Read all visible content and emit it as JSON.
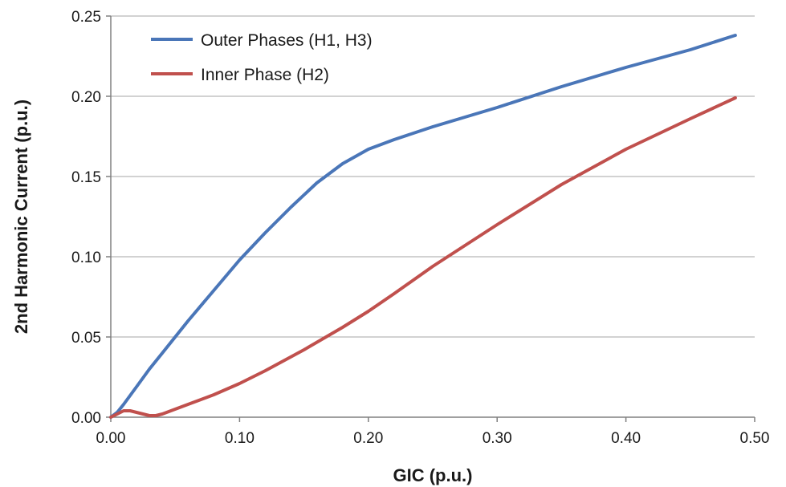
{
  "chart_data": {
    "type": "line",
    "title": "",
    "xlabel": "GIC (p.u.)",
    "ylabel": "2nd Harmonic Current (p.u.)",
    "xlim": [
      0,
      0.5
    ],
    "ylim": [
      0,
      0.25
    ],
    "xticks": [
      "0.00",
      "0.10",
      "0.20",
      "0.30",
      "0.40",
      "0.50"
    ],
    "yticks": [
      "0.00",
      "0.05",
      "0.10",
      "0.15",
      "0.20",
      "0.25"
    ],
    "grid": "horizontal",
    "legend_position": "top-left",
    "series": [
      {
        "name": "Outer Phases (H1, H3)",
        "color": "#4a76b8",
        "x": [
          0.0,
          0.005,
          0.01,
          0.02,
          0.03,
          0.04,
          0.05,
          0.06,
          0.08,
          0.1,
          0.12,
          0.14,
          0.16,
          0.18,
          0.2,
          0.22,
          0.25,
          0.3,
          0.35,
          0.4,
          0.45,
          0.485
        ],
        "y": [
          0.0,
          0.003,
          0.008,
          0.019,
          0.03,
          0.04,
          0.05,
          0.06,
          0.079,
          0.098,
          0.115,
          0.131,
          0.146,
          0.158,
          0.167,
          0.173,
          0.181,
          0.193,
          0.206,
          0.218,
          0.229,
          0.238
        ]
      },
      {
        "name": "Inner Phase (H2)",
        "color": "#c0504d",
        "x": [
          0.0,
          0.005,
          0.01,
          0.015,
          0.02,
          0.025,
          0.03,
          0.035,
          0.04,
          0.05,
          0.06,
          0.08,
          0.1,
          0.12,
          0.15,
          0.18,
          0.2,
          0.22,
          0.25,
          0.3,
          0.35,
          0.4,
          0.45,
          0.485
        ],
        "y": [
          0.0,
          0.002,
          0.004,
          0.004,
          0.003,
          0.002,
          0.001,
          0.001,
          0.002,
          0.005,
          0.008,
          0.014,
          0.021,
          0.029,
          0.042,
          0.056,
          0.066,
          0.077,
          0.094,
          0.12,
          0.145,
          0.167,
          0.186,
          0.199
        ]
      }
    ]
  }
}
